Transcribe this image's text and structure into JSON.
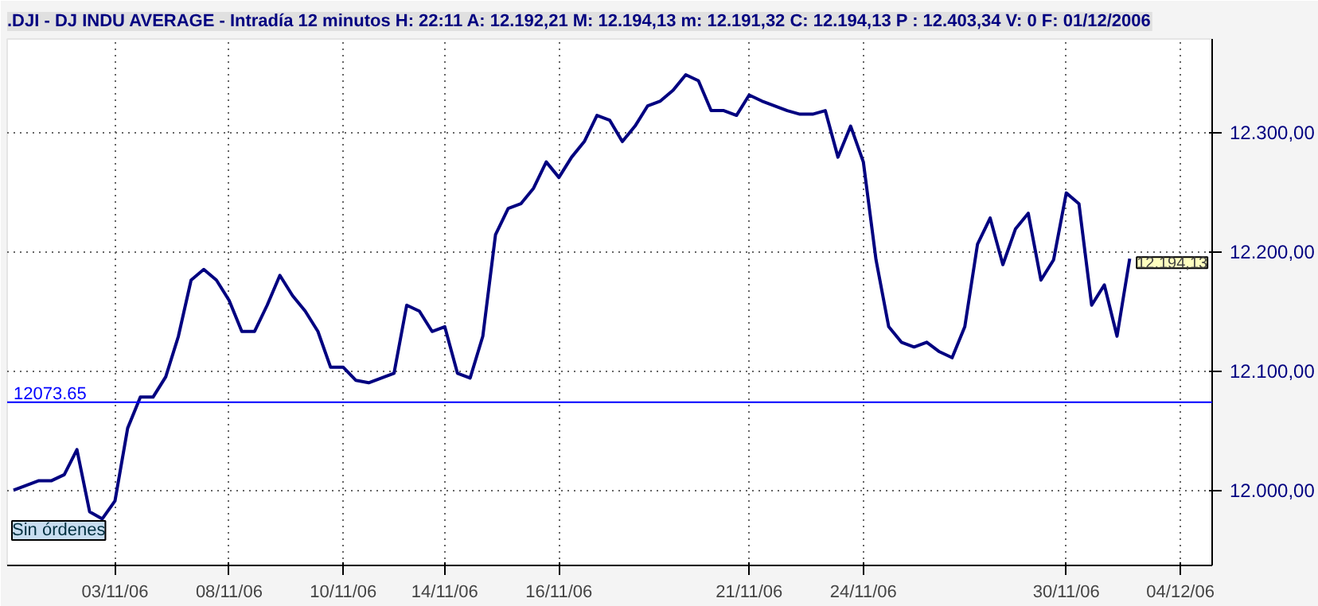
{
  "chart_data": {
    "type": "line",
    "title": ".DJI - DJ INDU AVERAGE - Intradía 12 minutos H: 22:11 A: 12.192,21 M: 12.194,13 m: 12.191,32 C: 12.194,13 P : 12.403,34 V: 0 F: 01/12/2006",
    "categories": [
      null,
      null,
      null,
      null,
      null,
      null,
      null,
      null,
      "03/11/06",
      null,
      null,
      null,
      null,
      null,
      null,
      null,
      null,
      "08/11/06",
      null,
      null,
      null,
      null,
      null,
      null,
      null,
      null,
      "10/11/06",
      null,
      null,
      null,
      null,
      null,
      null,
      null,
      "14/11/06",
      null,
      null,
      null,
      null,
      null,
      null,
      null,
      null,
      "16/11/06",
      null,
      null,
      null,
      null,
      null,
      null,
      null,
      null,
      null,
      null,
      null,
      null,
      null,
      null,
      "21/11/06",
      null,
      null,
      null,
      null,
      null,
      null,
      null,
      null,
      "24/11/06",
      null,
      null,
      null,
      null,
      null,
      null,
      null,
      null,
      null,
      null,
      null,
      null,
      null,
      null,
      null,
      "30/11/06",
      null,
      null,
      null,
      null,
      null,
      null,
      null,
      null,
      "04/12/06",
      null,
      null
    ],
    "series": [
      {
        "color": "#000080",
        "values": [
          12000,
          12004,
          12008,
          12008,
          12013,
          12034,
          11982,
          11976,
          11991,
          12052,
          12078,
          12078,
          12095,
          12129,
          12176,
          12185,
          12176,
          12159,
          12133,
          12133,
          12155,
          12180,
          12163,
          12150,
          12133,
          12103,
          12103,
          12092,
          12090,
          12094,
          12098,
          12155,
          12150,
          12133,
          12137,
          12098,
          12094,
          12129,
          12214,
          12236,
          12240,
          12253,
          12275,
          12262,
          12279,
          12292,
          12314,
          12310,
          12292,
          12305,
          12322,
          12326,
          12335,
          12348,
          12343,
          12318,
          12318,
          12314,
          12331,
          12326,
          12322,
          12318,
          12315,
          12315,
          12318,
          12279,
          12305,
          12275,
          12193,
          12137,
          12124,
          12120,
          12124,
          12116,
          12111,
          12137,
          12206,
          12228,
          12189,
          12219,
          12232,
          12176,
          12193,
          12249,
          12240,
          12155,
          12172,
          12129,
          12194,
          null,
          null,
          null,
          null,
          null,
          null
        ]
      }
    ],
    "ylim": [
      11937,
      12378
    ],
    "yticks": [
      {
        "value": 12000,
        "label": "12.000,00"
      },
      {
        "value": 12100,
        "label": "12.100,00"
      },
      {
        "value": 12200,
        "label": "12.200,00"
      },
      {
        "value": 12300,
        "label": "12.300,00"
      }
    ],
    "ref_lines": [
      {
        "axis": "y",
        "value": 12073.65,
        "label": "12073.65",
        "color": "#0000ff"
      }
    ],
    "annotations": [
      "Sin órdenes",
      "12.194,13"
    ],
    "grid": true,
    "line_style": "solid"
  }
}
